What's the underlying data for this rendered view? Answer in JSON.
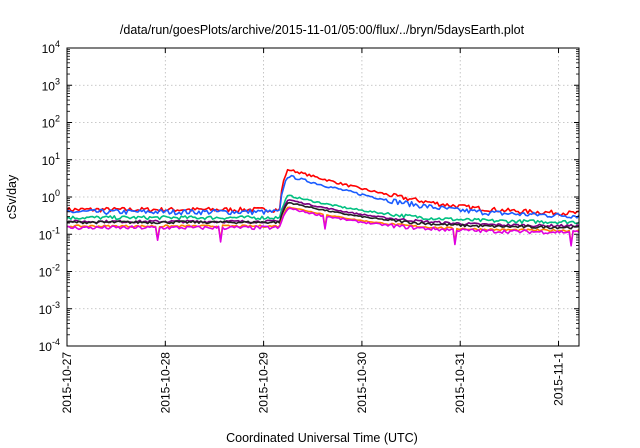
{
  "chart_data": {
    "type": "line",
    "title": "/data/run/goesPlots/archive/2015-11-01/05:00/flux/../bryn/5daysEarth.plot",
    "xlabel": "Coordinated Universal Time (UTC)",
    "ylabel": "cSv/day",
    "yscale": "log",
    "ylim": [
      0.0001,
      10000
    ],
    "y_ticks": [
      {
        "value": 0.0001,
        "base": "10",
        "exp": "-4"
      },
      {
        "value": 0.001,
        "base": "10",
        "exp": "-3"
      },
      {
        "value": 0.01,
        "base": "10",
        "exp": "-2"
      },
      {
        "value": 0.1,
        "base": "10",
        "exp": "-1"
      },
      {
        "value": 1,
        "base": "10",
        "exp": "0"
      },
      {
        "value": 10,
        "base": "10",
        "exp": "1"
      },
      {
        "value": 100,
        "base": "10",
        "exp": "2"
      },
      {
        "value": 1000,
        "base": "10",
        "exp": "3"
      },
      {
        "value": 10000,
        "base": "10",
        "exp": "4"
      }
    ],
    "xlim": [
      "2015-10-27T00:00",
      "2015-11-01T05:00"
    ],
    "x_ticks": [
      "2015-10-27",
      "2015-10-28",
      "2015-10-29",
      "2015-10-30",
      "2015-10-31",
      "2015-11-1"
    ],
    "grid": true,
    "series": [
      {
        "color": "#ff0000",
        "base": 0.46,
        "peak": 5.5,
        "final": 0.46,
        "noise": 0.18
      },
      {
        "color": "#1a5cff",
        "base": 0.4,
        "peak": 3.7,
        "final": 0.4,
        "noise": 0.2
      },
      {
        "color": "#00c080",
        "base": 0.28,
        "peak": 1.1,
        "final": 0.28,
        "noise": 0.14
      },
      {
        "color": "#7a0080",
        "base": 0.22,
        "peak": 0.85,
        "final": 0.22,
        "noise": 0.1
      },
      {
        "color": "#202020",
        "base": 0.21,
        "peak": 0.72,
        "final": 0.2,
        "noise": 0.1
      },
      {
        "color": "#ff8000",
        "base": 0.165,
        "peak": 0.55,
        "final": 0.165,
        "noise": 0.08
      },
      {
        "color": "#e000e0",
        "base": 0.15,
        "peak": 0.5,
        "final": 0.15,
        "noise": 0.14
      }
    ]
  }
}
